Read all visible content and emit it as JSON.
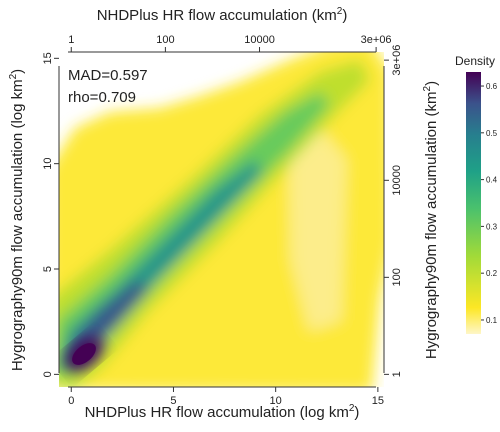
{
  "chart_data": {
    "type": "heatmap",
    "title": "",
    "bottom_axis": {
      "label": "NHDPlus HR flow accumulation (log km²)",
      "ticks": [
        "0",
        "5",
        "10",
        "15"
      ],
      "range": [
        -0.6,
        15.3
      ]
    },
    "left_axis": {
      "label": "Hygrography90m flow accumulation (log km²)",
      "ticks": [
        "0",
        "5",
        "10",
        "15"
      ],
      "range": [
        -0.6,
        15.3
      ]
    },
    "top_axis": {
      "label": "NHDPlus HR flow accumulation (km²)",
      "ticks": [
        "1",
        "100",
        "10000",
        "3e+06"
      ],
      "tick_positions_log": [
        0,
        4.605,
        9.21,
        14.914
      ]
    },
    "right_axis": {
      "label": "Hygrography90m flow accumulation (km²)",
      "ticks": [
        "1",
        "100",
        "10000",
        "3e+06"
      ],
      "tick_positions_log": [
        0,
        4.605,
        9.21,
        14.914
      ]
    },
    "annotations": [
      "MAD=0.597",
      "rho=0.709"
    ],
    "colorbar": {
      "label": "Density",
      "ticks": [
        "0.1",
        "0.2",
        "0.3",
        "0.4",
        "0.5",
        "0.6"
      ],
      "range": [
        0.07,
        0.63
      ],
      "colors": [
        "#fde725",
        "#c2df23",
        "#7ad151",
        "#22a884",
        "#2a788e",
        "#414487",
        "#440154"
      ]
    },
    "density_peak": {
      "x": 0.9,
      "y": 0.5,
      "value": 0.62
    }
  }
}
